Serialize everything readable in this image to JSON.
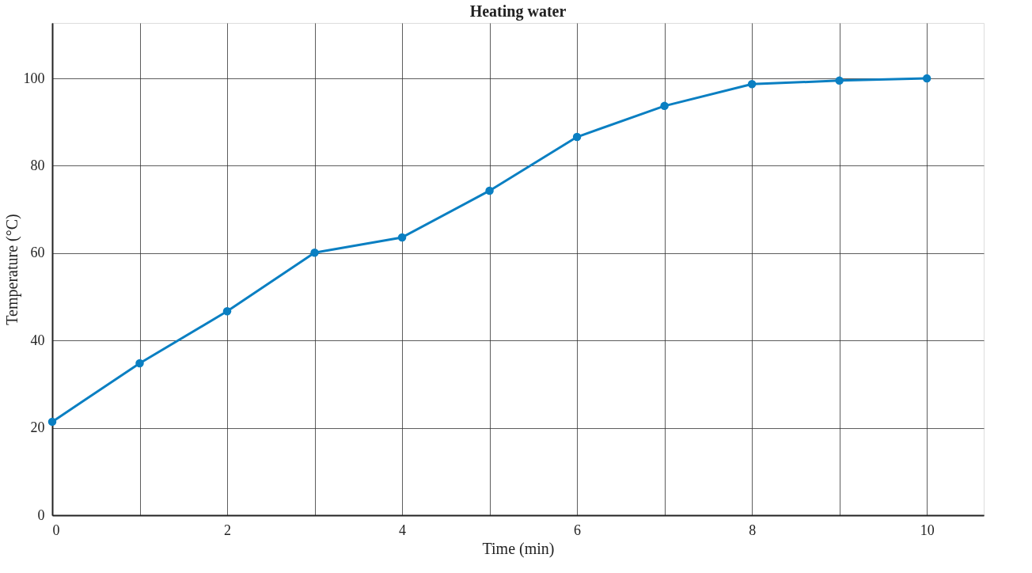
{
  "chart_data": {
    "type": "line",
    "title": "Heating water",
    "xlabel": "Time (min)",
    "ylabel": "Temperature (°C)",
    "x": [
      0,
      1,
      2,
      3,
      4,
      5,
      6,
      7,
      8,
      9,
      10
    ],
    "series": [
      {
        "color": "#0a7fc2",
        "values": [
          21.4,
          34.8,
          46.7,
          60.1,
          63.6,
          74.3,
          86.6,
          93.7,
          98.7,
          99.5,
          100
        ]
      }
    ],
    "xlim": [
      0,
      10.65
    ],
    "ylim": [
      0,
      112.7
    ],
    "xticks": [
      0,
      {
        "value": 1,
        "label": null
      },
      2,
      {
        "value": 3,
        "label": null
      },
      4,
      {
        "value": 5,
        "label": null
      },
      6,
      {
        "value": 7,
        "label": null
      },
      8,
      {
        "value": 9,
        "label": null
      },
      10
    ],
    "yticks": [
      0,
      20,
      40,
      60,
      80,
      100
    ],
    "grid": true,
    "marker": "circle",
    "line_style": "solid"
  }
}
